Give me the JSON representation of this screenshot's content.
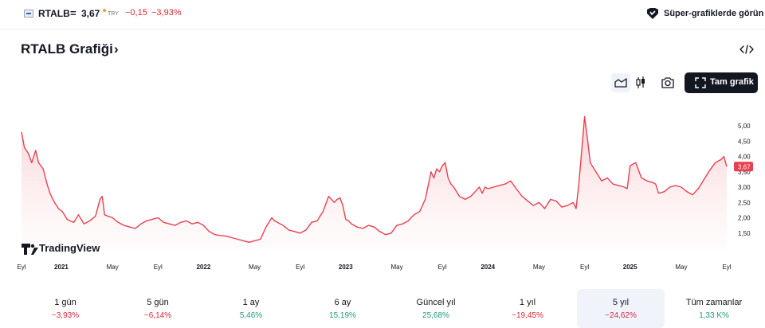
{
  "header": {
    "symbol": "RTALB",
    "equals": "=",
    "price": "3,67",
    "currency": "TRY",
    "change": "−0,15",
    "change_percent": "−3,93%",
    "super_charts_label": "Süper-grafiklerde görün"
  },
  "title": {
    "text": "RTALB Grafiği",
    "chevron": "›"
  },
  "toolbar": {
    "fullscreen_label": "Tam grafik"
  },
  "colors": {
    "line": "#e8404f",
    "negative": "#d9283c",
    "positive": "#1f9c77",
    "button_dark": "#131722"
  },
  "icons": [
    "flag-icon",
    "super-charts-icon",
    "embed-code-icon",
    "area-chart-icon",
    "candle-chart-icon",
    "camera-icon",
    "fullscreen-icon",
    "tradingview-logo-icon"
  ],
  "logo": {
    "text": "TradingView"
  },
  "chart_data": {
    "type": "area",
    "title": "",
    "xlabel": "",
    "ylabel": "",
    "ylim": [
      1.0,
      5.6
    ],
    "y_axis_side": "right",
    "last_value_label": "3,67",
    "y_ticks": [
      {
        "value": 1.5,
        "label": "1,50"
      },
      {
        "value": 2.0,
        "label": "2,00"
      },
      {
        "value": 2.5,
        "label": "2,50"
      },
      {
        "value": 3.0,
        "label": "3,00"
      },
      {
        "value": 3.5,
        "label": "3,50"
      },
      {
        "value": 4.0,
        "label": "4,00"
      },
      {
        "value": 4.5,
        "label": "4,50"
      },
      {
        "value": 5.0,
        "label": "5,00"
      }
    ],
    "x_ticks": [
      {
        "t": 0.0,
        "label": "Eyl",
        "bold": false
      },
      {
        "t": 0.7,
        "label": "2021",
        "bold": true
      },
      {
        "t": 1.6,
        "label": "May",
        "bold": false
      },
      {
        "t": 2.4,
        "label": "Eyl",
        "bold": false
      },
      {
        "t": 3.2,
        "label": "2022",
        "bold": true
      },
      {
        "t": 4.1,
        "label": "May",
        "bold": false
      },
      {
        "t": 4.9,
        "label": "Eyl",
        "bold": false
      },
      {
        "t": 5.7,
        "label": "2023",
        "bold": true
      },
      {
        "t": 6.6,
        "label": "May",
        "bold": false
      },
      {
        "t": 7.4,
        "label": "Eyl",
        "bold": false
      },
      {
        "t": 8.2,
        "label": "2024",
        "bold": true
      },
      {
        "t": 9.1,
        "label": "May",
        "bold": false
      },
      {
        "t": 9.9,
        "label": "Eyl",
        "bold": false
      },
      {
        "t": 10.7,
        "label": "2025",
        "bold": true
      },
      {
        "t": 11.6,
        "label": "May",
        "bold": false
      },
      {
        "t": 12.4,
        "label": "Eyl",
        "bold": false
      }
    ],
    "series": [
      {
        "t": [
          0.0,
          0.05,
          0.12,
          0.18,
          0.25,
          0.3,
          0.38,
          0.45,
          0.5,
          0.58,
          0.65,
          0.72,
          0.8,
          0.85,
          0.92,
          1.0,
          1.1,
          1.2,
          1.3,
          1.38,
          1.42,
          1.46,
          1.52,
          1.6,
          1.7,
          1.8,
          1.9,
          2.0,
          2.1,
          2.2,
          2.3,
          2.4,
          2.5,
          2.6,
          2.7,
          2.8,
          2.9,
          3.0,
          3.1,
          3.2,
          3.3,
          3.4,
          3.5,
          3.6,
          3.7,
          3.8,
          3.9,
          4.0,
          4.1,
          4.2,
          4.3,
          4.4,
          4.45,
          4.5,
          4.55,
          4.6,
          4.7,
          4.8,
          4.9,
          5.0,
          5.1,
          5.2,
          5.3,
          5.4,
          5.5,
          5.55,
          5.6,
          5.65,
          5.7,
          5.75,
          5.8,
          5.9,
          6.0,
          6.1,
          6.2,
          6.3,
          6.4,
          6.5,
          6.6,
          6.7,
          6.8,
          6.9,
          7.0,
          7.1,
          7.2,
          7.25,
          7.3,
          7.35,
          7.4,
          7.45,
          7.5,
          7.55,
          7.6,
          7.7,
          7.8,
          7.9,
          8.0,
          8.05,
          8.1,
          8.15,
          8.2,
          8.3,
          8.4,
          8.5,
          8.6,
          8.7,
          8.8,
          8.9,
          9.0,
          9.1,
          9.2,
          9.3,
          9.4,
          9.5,
          9.6,
          9.7,
          9.75,
          9.8,
          9.85,
          9.9,
          9.95,
          10.0,
          10.1,
          10.2,
          10.3,
          10.4,
          10.5,
          10.6,
          10.65,
          10.7,
          10.8,
          10.9,
          11.0,
          11.1,
          11.15,
          11.2,
          11.3,
          11.4,
          11.5,
          11.6,
          11.7,
          11.8,
          11.9,
          12.0,
          12.1,
          12.2,
          12.3,
          12.35,
          12.4
        ],
        "values": [
          4.8,
          4.3,
          4.1,
          3.8,
          4.2,
          3.8,
          3.6,
          3.1,
          2.8,
          2.5,
          2.3,
          2.2,
          1.95,
          1.9,
          1.85,
          2.1,
          1.8,
          1.9,
          2.05,
          2.6,
          2.7,
          2.1,
          2.05,
          2.0,
          1.85,
          1.75,
          1.7,
          1.65,
          1.8,
          1.9,
          1.95,
          2.0,
          1.85,
          1.8,
          1.75,
          1.85,
          1.9,
          1.8,
          1.85,
          1.75,
          1.55,
          1.45,
          1.42,
          1.4,
          1.35,
          1.3,
          1.25,
          1.2,
          1.25,
          1.3,
          1.7,
          2.0,
          1.9,
          1.85,
          1.8,
          1.75,
          1.6,
          1.55,
          1.5,
          1.6,
          1.85,
          1.9,
          2.2,
          2.7,
          2.5,
          2.6,
          2.65,
          2.4,
          1.95,
          1.9,
          1.8,
          1.7,
          1.65,
          1.75,
          1.7,
          1.55,
          1.45,
          1.5,
          1.75,
          1.8,
          1.9,
          2.1,
          2.2,
          2.6,
          3.5,
          3.3,
          3.6,
          3.5,
          3.7,
          3.8,
          3.3,
          3.1,
          3.0,
          2.7,
          2.6,
          2.7,
          2.9,
          3.0,
          2.8,
          3.0,
          2.95,
          3.0,
          3.05,
          3.1,
          3.2,
          2.95,
          2.7,
          2.55,
          2.4,
          2.5,
          2.3,
          2.6,
          2.55,
          2.35,
          2.4,
          2.5,
          2.3,
          3.1,
          4.2,
          5.3,
          4.6,
          3.8,
          3.5,
          3.2,
          3.3,
          3.1,
          3.05,
          3.0,
          2.95,
          3.7,
          3.8,
          3.3,
          3.2,
          3.15,
          3.1,
          2.8,
          2.85,
          3.0,
          3.05,
          3.0,
          2.85,
          2.75,
          2.95,
          3.25,
          3.55,
          3.8,
          3.9,
          4.0,
          3.67
        ]
      }
    ]
  },
  "periods": [
    {
      "label": "1 gün",
      "value": "−3,93%",
      "sign": "neg",
      "selected": false
    },
    {
      "label": "5 gün",
      "value": "−6,14%",
      "sign": "neg",
      "selected": false
    },
    {
      "label": "1 ay",
      "value": "5,46%",
      "sign": "pos",
      "selected": false
    },
    {
      "label": "6 ay",
      "value": "15,19%",
      "sign": "pos",
      "selected": false
    },
    {
      "label": "Güncel yıl",
      "value": "25,68%",
      "sign": "pos",
      "selected": false
    },
    {
      "label": "1 yıl",
      "value": "−19,45%",
      "sign": "neg",
      "selected": false
    },
    {
      "label": "5 yıl",
      "value": "−24,62%",
      "sign": "neg",
      "selected": true
    },
    {
      "label": "Tüm zamanlar",
      "value": "1,33 K%",
      "sign": "pos",
      "selected": false
    }
  ]
}
